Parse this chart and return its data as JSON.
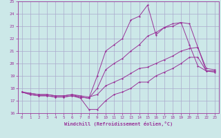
{
  "xlabel": "Windchill (Refroidissement éolien,°C)",
  "bg_color": "#cce8e8",
  "grid_color": "#aaaacc",
  "line_color": "#993399",
  "xlim": [
    -0.5,
    23.5
  ],
  "ylim": [
    16,
    25
  ],
  "yticks": [
    16,
    17,
    18,
    19,
    20,
    21,
    22,
    23,
    24,
    25
  ],
  "xticks": [
    0,
    1,
    2,
    3,
    4,
    5,
    6,
    7,
    8,
    9,
    10,
    11,
    12,
    13,
    14,
    15,
    16,
    17,
    18,
    19,
    20,
    21,
    22,
    23
  ],
  "lines": [
    {
      "x": [
        0,
        1,
        2,
        3,
        4,
        5,
        6,
        7,
        8,
        9,
        10,
        11,
        12,
        13,
        14,
        15,
        16,
        17,
        18,
        19,
        20,
        21,
        22,
        23
      ],
      "y": [
        17.7,
        17.5,
        17.4,
        17.4,
        17.3,
        17.3,
        17.4,
        17.2,
        16.3,
        16.3,
        17.0,
        17.5,
        17.7,
        18.0,
        18.5,
        18.5,
        19.0,
        19.3,
        19.6,
        20.0,
        20.5,
        20.5,
        19.4,
        19.3
      ]
    },
    {
      "x": [
        0,
        1,
        2,
        3,
        4,
        5,
        6,
        7,
        8,
        9,
        10,
        11,
        12,
        13,
        14,
        15,
        16,
        17,
        18,
        19,
        20,
        21,
        22,
        23
      ],
      "y": [
        17.7,
        17.5,
        17.4,
        17.4,
        17.3,
        17.3,
        17.4,
        17.3,
        17.2,
        19.0,
        21.0,
        21.5,
        22.0,
        23.5,
        23.8,
        24.7,
        22.3,
        22.9,
        23.0,
        23.3,
        23.2,
        21.3,
        19.6,
        19.5
      ]
    },
    {
      "x": [
        0,
        1,
        2,
        3,
        4,
        5,
        6,
        7,
        8,
        9,
        10,
        11,
        12,
        13,
        14,
        15,
        16,
        17,
        18,
        19,
        20,
        21,
        22,
        23
      ],
      "y": [
        17.7,
        17.6,
        17.5,
        17.5,
        17.4,
        17.4,
        17.5,
        17.3,
        17.2,
        18.0,
        19.5,
        20.0,
        20.4,
        21.0,
        21.5,
        22.2,
        22.5,
        22.9,
        23.2,
        23.3,
        21.5,
        19.8,
        19.4,
        19.4
      ]
    },
    {
      "x": [
        0,
        1,
        2,
        3,
        4,
        5,
        6,
        7,
        8,
        9,
        10,
        11,
        12,
        13,
        14,
        15,
        16,
        17,
        18,
        19,
        20,
        21,
        22,
        23
      ],
      "y": [
        17.7,
        17.6,
        17.5,
        17.5,
        17.4,
        17.4,
        17.5,
        17.4,
        17.3,
        17.5,
        18.2,
        18.5,
        18.8,
        19.2,
        19.6,
        19.7,
        20.0,
        20.3,
        20.6,
        21.0,
        21.2,
        21.3,
        19.4,
        19.4
      ]
    }
  ]
}
